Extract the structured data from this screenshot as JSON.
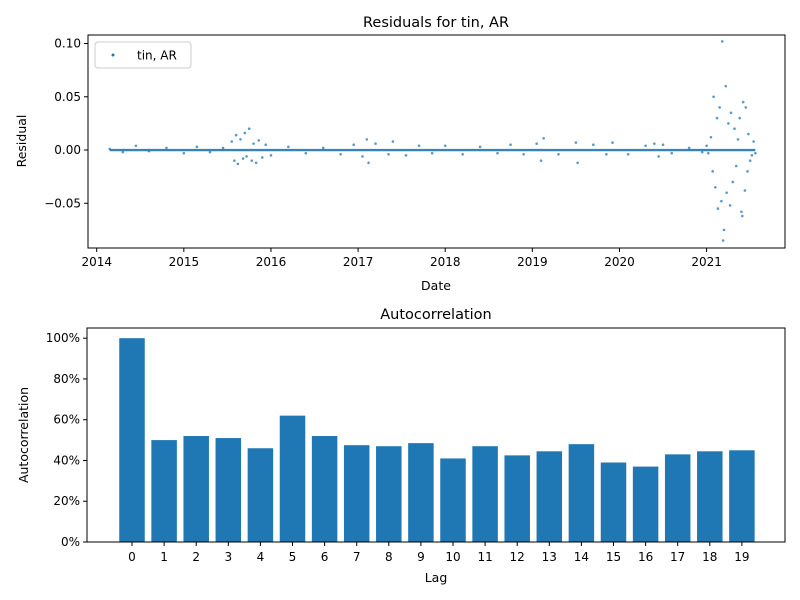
{
  "chart_data": [
    {
      "type": "scatter",
      "title": "Residuals for tin, AR",
      "xlabel": "Date",
      "ylabel": "Residual",
      "x_ticks": [
        "2014",
        "2015",
        "2016",
        "2017",
        "2018",
        "2019",
        "2020",
        "2021"
      ],
      "y_ticks": [
        "0.10",
        "0.05",
        "0.00",
        "−0.05"
      ],
      "y_tick_values": [
        0.1,
        0.05,
        0.0,
        -0.05
      ],
      "xlim": [
        2013.9,
        2021.9
      ],
      "ylim": [
        -0.092,
        0.108
      ],
      "legend": {
        "label": "tin, AR",
        "placement": "top-left"
      },
      "series": [
        {
          "name": "tin, AR",
          "color": "#1f77b4",
          "points": [
            [
              2014.15,
              0.001
            ],
            [
              2014.3,
              -0.002
            ],
            [
              2014.45,
              0.004
            ],
            [
              2014.6,
              -0.001
            ],
            [
              2014.8,
              0.002
            ],
            [
              2015.0,
              -0.003
            ],
            [
              2015.15,
              0.003
            ],
            [
              2015.3,
              -0.002
            ],
            [
              2015.45,
              0.002
            ],
            [
              2015.55,
              0.008
            ],
            [
              2015.58,
              -0.01
            ],
            [
              2015.6,
              0.014
            ],
            [
              2015.62,
              -0.013
            ],
            [
              2015.65,
              0.01
            ],
            [
              2015.68,
              -0.008
            ],
            [
              2015.7,
              0.016
            ],
            [
              2015.72,
              -0.006
            ],
            [
              2015.75,
              0.02
            ],
            [
              2015.78,
              -0.01
            ],
            [
              2015.8,
              0.006
            ],
            [
              2015.83,
              -0.012
            ],
            [
              2015.86,
              0.009
            ],
            [
              2015.9,
              -0.007
            ],
            [
              2015.94,
              0.005
            ],
            [
              2016.0,
              -0.005
            ],
            [
              2016.2,
              0.003
            ],
            [
              2016.4,
              -0.003
            ],
            [
              2016.6,
              0.002
            ],
            [
              2016.8,
              -0.004
            ],
            [
              2016.95,
              0.005
            ],
            [
              2017.05,
              -0.006
            ],
            [
              2017.1,
              0.01
            ],
            [
              2017.12,
              -0.012
            ],
            [
              2017.2,
              0.006
            ],
            [
              2017.35,
              -0.004
            ],
            [
              2017.4,
              0.008
            ],
            [
              2017.55,
              -0.005
            ],
            [
              2017.7,
              0.004
            ],
            [
              2017.85,
              -0.003
            ],
            [
              2018.0,
              0.004
            ],
            [
              2018.2,
              -0.004
            ],
            [
              2018.4,
              0.003
            ],
            [
              2018.6,
              -0.003
            ],
            [
              2018.75,
              0.005
            ],
            [
              2018.9,
              -0.004
            ],
            [
              2019.05,
              0.006
            ],
            [
              2019.1,
              -0.01
            ],
            [
              2019.13,
              0.011
            ],
            [
              2019.3,
              -0.004
            ],
            [
              2019.5,
              0.007
            ],
            [
              2019.52,
              -0.012
            ],
            [
              2019.7,
              0.005
            ],
            [
              2019.85,
              -0.004
            ],
            [
              2019.92,
              0.007
            ],
            [
              2020.1,
              -0.004
            ],
            [
              2020.3,
              0.004
            ],
            [
              2020.4,
              0.006
            ],
            [
              2020.45,
              -0.006
            ],
            [
              2020.5,
              0.005
            ],
            [
              2020.6,
              -0.003
            ],
            [
              2020.8,
              0.002
            ],
            [
              2020.95,
              -0.002
            ],
            [
              2021.0,
              0.004
            ],
            [
              2021.02,
              -0.003
            ],
            [
              2021.05,
              0.012
            ],
            [
              2021.07,
              -0.02
            ],
            [
              2021.08,
              0.05
            ],
            [
              2021.1,
              -0.035
            ],
            [
              2021.12,
              0.03
            ],
            [
              2021.13,
              -0.055
            ],
            [
              2021.15,
              0.04
            ],
            [
              2021.17,
              -0.048
            ],
            [
              2021.18,
              0.102
            ],
            [
              2021.19,
              -0.085
            ],
            [
              2021.2,
              -0.075
            ],
            [
              2021.22,
              0.06
            ],
            [
              2021.23,
              -0.04
            ],
            [
              2021.25,
              0.025
            ],
            [
              2021.27,
              -0.052
            ],
            [
              2021.28,
              0.035
            ],
            [
              2021.3,
              -0.03
            ],
            [
              2021.32,
              0.02
            ],
            [
              2021.34,
              -0.015
            ],
            [
              2021.36,
              0.01
            ],
            [
              2021.38,
              0.03
            ],
            [
              2021.4,
              -0.058
            ],
            [
              2021.41,
              -0.062
            ],
            [
              2021.42,
              0.045
            ],
            [
              2021.44,
              -0.038
            ],
            [
              2021.45,
              0.04
            ],
            [
              2021.47,
              -0.02
            ],
            [
              2021.48,
              0.015
            ],
            [
              2021.5,
              -0.01
            ],
            [
              2021.52,
              -0.005
            ],
            [
              2021.54,
              0.008
            ],
            [
              2021.56,
              -0.003
            ]
          ]
        }
      ]
    },
    {
      "type": "bar",
      "title": "Autocorrelation",
      "xlabel": "Lag",
      "ylabel": "Autocorrelation",
      "categories": [
        "0",
        "1",
        "2",
        "3",
        "4",
        "5",
        "6",
        "7",
        "8",
        "9",
        "10",
        "11",
        "12",
        "13",
        "14",
        "15",
        "16",
        "17",
        "18",
        "19"
      ],
      "values": [
        1.0,
        0.5,
        0.52,
        0.51,
        0.46,
        0.62,
        0.52,
        0.475,
        0.47,
        0.485,
        0.41,
        0.47,
        0.425,
        0.445,
        0.48,
        0.39,
        0.37,
        0.43,
        0.445,
        0.45
      ],
      "y_ticks": [
        "100%",
        "80%",
        "60%",
        "40%",
        "20%",
        "0%"
      ],
      "y_tick_values": [
        1.0,
        0.8,
        0.6,
        0.4,
        0.2,
        0.0
      ],
      "ylim": [
        0,
        1.05
      ],
      "color": "#1f77b4"
    }
  ]
}
